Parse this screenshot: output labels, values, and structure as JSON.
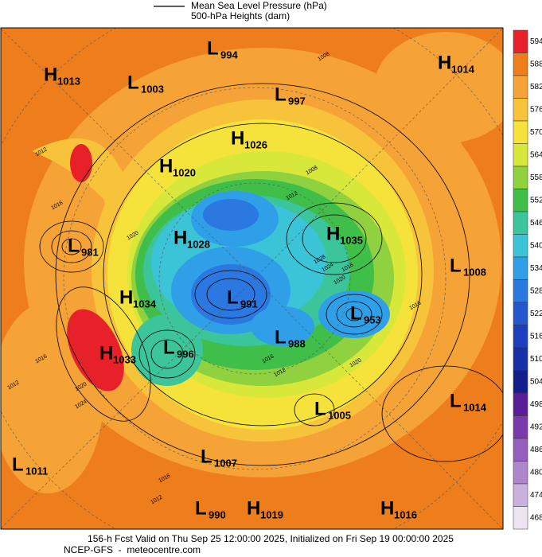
{
  "header": {
    "line1": "Mean Sea Level Pressure (hPa)",
    "line2": "500-hPa Heights (dam)"
  },
  "systems": [
    {
      "letter": "H",
      "value": 1013
    },
    {
      "letter": "L",
      "value": 1003
    },
    {
      "letter": "L",
      "value": 994
    },
    {
      "letter": "H",
      "value": 1014
    },
    {
      "letter": "L",
      "value": 997
    },
    {
      "letter": "H",
      "value": 1026
    },
    {
      "letter": "H",
      "value": 1020
    },
    {
      "letter": "L",
      "value": 981
    },
    {
      "letter": "H",
      "value": 1028
    },
    {
      "letter": "H",
      "value": 1035
    },
    {
      "letter": "L",
      "value": 1008
    },
    {
      "letter": "H",
      "value": 1034
    },
    {
      "letter": "L",
      "value": 991
    },
    {
      "letter": "L",
      "value": 953
    },
    {
      "letter": "L",
      "value": 988
    },
    {
      "letter": "H",
      "value": 1033
    },
    {
      "letter": "L",
      "value": 996
    },
    {
      "letter": "L",
      "value": 1005
    },
    {
      "letter": "L",
      "value": 1014
    },
    {
      "letter": "L",
      "value": 1007
    },
    {
      "letter": "L",
      "value": 1011
    },
    {
      "letter": "L",
      "value": 990
    },
    {
      "letter": "H",
      "value": 1019
    },
    {
      "letter": "H",
      "value": 1016
    }
  ],
  "isobar_labels": [
    1012,
    1016,
    1020,
    1008,
    1012,
    1016,
    1020,
    1024,
    1028,
    1012,
    1016,
    1020,
    1016,
    1012,
    1012,
    1016,
    1020,
    1024,
    1008,
    1016
  ],
  "colorbar": {
    "levels": [
      594,
      588,
      582,
      576,
      570,
      564,
      558,
      552,
      546,
      540,
      534,
      528,
      522,
      516,
      510,
      504,
      498,
      492,
      486,
      480,
      474,
      468
    ],
    "colors": [
      "#e8202a",
      "#ee7d1c",
      "#f5a236",
      "#f7c33a",
      "#f5e23a",
      "#d8e83a",
      "#8fd13e",
      "#3fbf4a",
      "#3cc49a",
      "#3bc4d8",
      "#2fa0e8",
      "#2b78e0",
      "#2456d0",
      "#1d3fbf",
      "#1830a5",
      "#14208a",
      "#5a1e96",
      "#7a3aaa",
      "#9460bb",
      "#ad86cc",
      "#c9b0dd",
      "#ece4f2"
    ]
  },
  "footer": {
    "line1": "156-h Fcst Valid on Thu Sep 25 12:00:00 2025, Initialized on Fri Sep 19 00:00:00 2025",
    "line2": "NCEP-GFS  -  meteocentre.com"
  }
}
